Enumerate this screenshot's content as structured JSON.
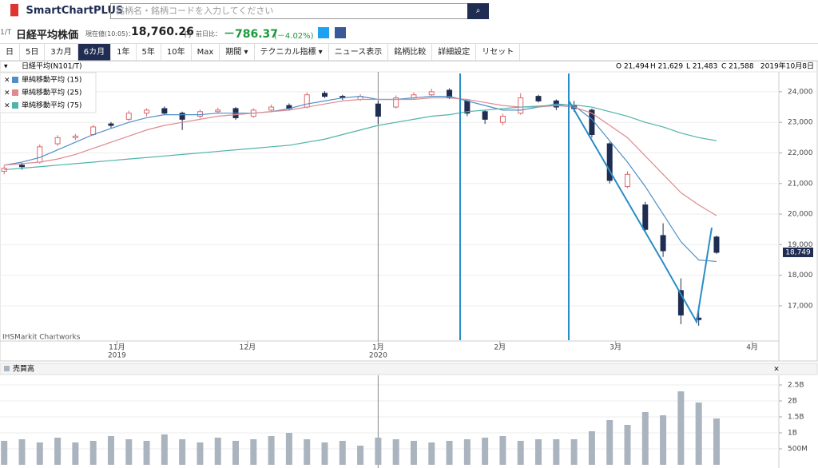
{
  "header": {
    "logo": "SmartChartPLUS",
    "search_placeholder": "銘柄名・銘柄コードを入力してください",
    "code": "1/T",
    "name": "日経平均株価",
    "price_label": "現在値(10:05)：",
    "price": "18,760.26",
    "price_unit": "円",
    "change_label": "前日比：",
    "change": "－786.37",
    "change_pct": "(－4.02%)"
  },
  "toolbar": {
    "buttons": [
      "日",
      "5日",
      "3カ月",
      "6カ月",
      "1年",
      "5年",
      "10年",
      "Max",
      "期間 ▾",
      "テクニカル指標 ▾",
      "ニュース表示",
      "銘柄比較",
      "詳細設定",
      "リセット"
    ],
    "active": 3
  },
  "chart_data": {
    "type": "candlestick",
    "title": "日経平均(N101/T)",
    "ohlc_info": [
      "O 21,494",
      "H 21,629",
      "L 21,483",
      "C 21,588"
    ],
    "date_info": "2019年10月8日",
    "credit": "IHSMarkit Chartworks",
    "x": [
      0,
      3,
      6,
      9,
      12,
      15,
      18,
      21,
      24,
      27,
      30,
      33,
      36,
      39,
      42,
      45,
      48,
      51,
      54,
      57,
      60,
      63,
      66,
      69,
      72,
      75,
      78,
      81,
      84,
      87,
      90,
      93,
      96,
      99,
      102,
      105,
      108,
      111,
      114,
      117,
      120
    ],
    "open": [
      21400,
      21600,
      21700,
      22300,
      22500,
      22600,
      22950,
      23100,
      23300,
      23450,
      23300,
      23200,
      23350,
      23450,
      23200,
      23400,
      23550,
      23500,
      23950,
      23850,
      23750,
      23600,
      23500,
      23800,
      23900,
      24050,
      23700,
      23350,
      23000,
      23300,
      23850,
      23700,
      23550,
      23400,
      22300,
      20900,
      20300,
      19300,
      17500,
      16600,
      19250
    ],
    "high": [
      21580,
      21680,
      22280,
      22580,
      22620,
      22920,
      23010,
      23380,
      23460,
      23520,
      23350,
      23420,
      23480,
      23500,
      23460,
      23580,
      23620,
      23980,
      24020,
      23900,
      23920,
      23700,
      23880,
      23980,
      24100,
      24110,
      23750,
      23400,
      23280,
      23950,
      23900,
      23750,
      23700,
      23450,
      22350,
      21400,
      20400,
      19700,
      17900,
      17000,
      19300
    ],
    "low": [
      21300,
      21450,
      21650,
      22230,
      22420,
      22550,
      22820,
      23050,
      23200,
      23250,
      22750,
      23130,
      23300,
      23080,
      23150,
      23330,
      23390,
      23450,
      23800,
      23730,
      23700,
      22950,
      23450,
      23750,
      23850,
      23760,
      23200,
      22950,
      22900,
      23250,
      23650,
      23400,
      23350,
      22500,
      21000,
      20850,
      19400,
      18600,
      16400,
      16350,
      18700
    ],
    "close": [
      21500,
      21550,
      22200,
      22500,
      22550,
      22850,
      22900,
      23300,
      23400,
      23300,
      23100,
      23350,
      23400,
      23150,
      23400,
      23500,
      23450,
      23900,
      23850,
      23800,
      23850,
      23200,
      23800,
      23900,
      24000,
      23800,
      23300,
      23100,
      23200,
      23800,
      23700,
      23500,
      23450,
      22600,
      21100,
      21300,
      19500,
      18800,
      16700,
      16550,
      18749
    ],
    "last_price_label": "18,749",
    "up_color": "#d9686e",
    "down_color": "#1f2d52",
    "series": [
      {
        "name": "単純移動平均 (15)",
        "color": "#4f8fc6",
        "values": [
          21600,
          21700,
          21850,
          22100,
          22350,
          22600,
          22800,
          23000,
          23150,
          23250,
          23250,
          23250,
          23300,
          23300,
          23300,
          23350,
          23450,
          23600,
          23700,
          23800,
          23850,
          23750,
          23750,
          23800,
          23850,
          23850,
          23700,
          23550,
          23400,
          23400,
          23500,
          23600,
          23550,
          23100,
          22400,
          21700,
          20900,
          20000,
          19100,
          18500,
          18450
        ]
      },
      {
        "name": "単純移動平均 (25)",
        "color": "#de8a90",
        "values": [
          21600,
          21650,
          21700,
          21800,
          21950,
          22150,
          22350,
          22550,
          22750,
          22900,
          23000,
          23100,
          23200,
          23250,
          23300,
          23350,
          23400,
          23500,
          23600,
          23700,
          23750,
          23750,
          23750,
          23750,
          23800,
          23800,
          23750,
          23650,
          23550,
          23500,
          23500,
          23550,
          23500,
          23300,
          22900,
          22500,
          21900,
          21300,
          20700,
          20300,
          19950
        ]
      },
      {
        "name": "単純移動平均 (75)",
        "color": "#4fb3aa",
        "values": [
          21450,
          21500,
          21550,
          21600,
          21650,
          21700,
          21750,
          21800,
          21850,
          21900,
          21950,
          22000,
          22050,
          22100,
          22150,
          22200,
          22250,
          22350,
          22450,
          22600,
          22750,
          22900,
          23000,
          23100,
          23200,
          23250,
          23350,
          23400,
          23450,
          23500,
          23530,
          23560,
          23570,
          23500,
          23350,
          23200,
          23000,
          22850,
          22650,
          22500,
          22400
        ]
      }
    ],
    "xlim": [
      -0.7,
      130.5
    ],
    "xticks": [
      {
        "value": 19,
        "label": "11月"
      },
      {
        "value": 41,
        "label": "12月"
      },
      {
        "value": 63,
        "label": "1月"
      },
      {
        "value": 83.5,
        "label": "2月"
      },
      {
        "value": 103,
        "label": "3月"
      },
      {
        "value": 126,
        "label": "4月"
      }
    ],
    "year_labels": [
      {
        "value": 19,
        "label": "2019"
      },
      {
        "value": 63,
        "label": "2020"
      }
    ],
    "ylim": [
      15850,
      24650
    ],
    "yticks": [
      {
        "value": 17000,
        "label": "17,000"
      },
      {
        "value": 18000,
        "label": "18,000"
      },
      {
        "value": 19000,
        "label": "19,000"
      },
      {
        "value": 20000,
        "label": "20,000"
      },
      {
        "value": 21000,
        "label": "21,000"
      },
      {
        "value": 22000,
        "label": "22,000"
      },
      {
        "value": 23000,
        "label": "23,000"
      },
      {
        "value": 24000,
        "label": "24,000"
      }
    ],
    "grid": true,
    "volume": {
      "title": "売買高",
      "color": "#aab4bf",
      "values": [
        750000000,
        800000000,
        700000000,
        850000000,
        700000000,
        750000000,
        900000000,
        800000000,
        750000000,
        950000000,
        800000000,
        700000000,
        850000000,
        750000000,
        800000000,
        900000000,
        1000000000,
        800000000,
        700000000,
        750000000,
        600000000,
        850000000,
        800000000,
        750000000,
        700000000,
        750000000,
        800000000,
        850000000,
        900000000,
        750000000,
        800000000,
        800000000,
        800000000,
        1050000000,
        1400000000,
        1250000000,
        1650000000,
        1550000000,
        2300000000,
        1950000000,
        1450000000
      ],
      "ylim": [
        0,
        2800000000
      ],
      "yticks": [
        {
          "value": 500000000,
          "label": "500M"
        },
        {
          "value": 1000000000,
          "label": "1B"
        },
        {
          "value": 1500000000,
          "label": "1.5B"
        },
        {
          "value": 2000000000,
          "label": "2B"
        },
        {
          "value": 2500000000,
          "label": "2.5B"
        }
      ]
    }
  }
}
